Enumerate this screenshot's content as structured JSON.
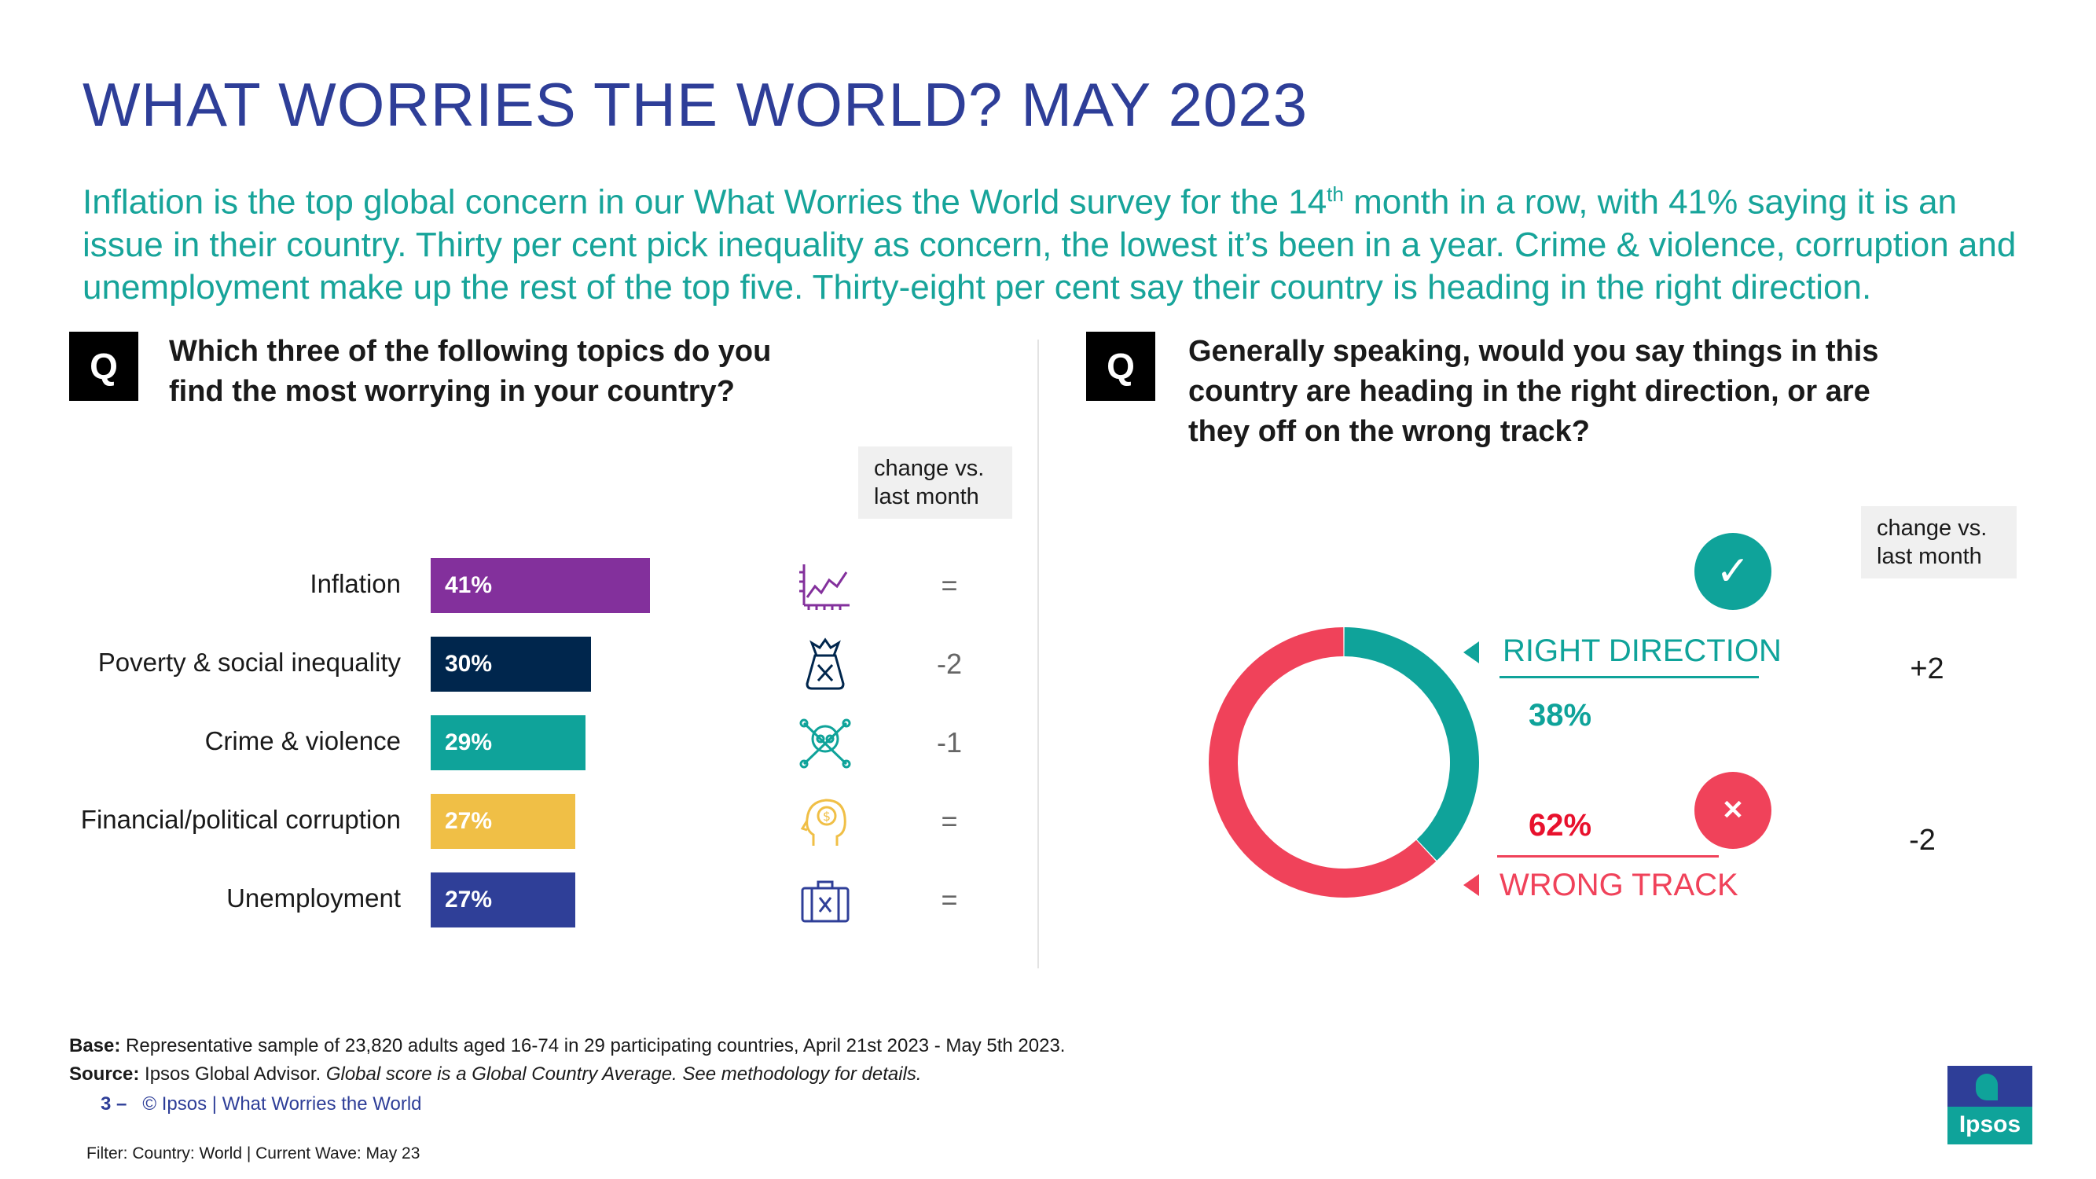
{
  "title": "WHAT WORRIES THE WORLD? MAY 2023",
  "intro": {
    "line1_pre": "Inflation is the top global concern in our What Worries the World survey for the 14",
    "line1_sup": "th",
    "line1_post": " month in a row, with 41% saying it is an",
    "line2": "issue in their country. Thirty per cent pick inequality as concern, the lowest it’s been in a year. Crime & violence, corruption and",
    "line3": "unemployment make up the rest of the top five. Thirty-eight per cent say their country is heading in the right direction."
  },
  "left_q": {
    "badge": "Q",
    "line1": "Which three of the following topics do you",
    "line2": "find the most worrying in your country?",
    "change_hdr_1": "change vs.",
    "change_hdr_2": "last month"
  },
  "right_q": {
    "badge": "Q",
    "line1": "Generally speaking, would you say things in this",
    "line2": "country are heading in the right direction, or are",
    "line3": "they off on the wrong track?",
    "change_hdr_1": "change vs.",
    "change_hdr_2": "last month"
  },
  "chart_data": [
    {
      "type": "bar",
      "orientation": "horizontal",
      "title": "Which three of the following topics do you find the most worrying in your country?",
      "categories": [
        "Inflation",
        "Poverty & social inequality",
        "Crime & violence",
        "Financial/political corruption",
        "Unemployment"
      ],
      "values": [
        41,
        30,
        29,
        27,
        27
      ],
      "value_labels": [
        "41%",
        "30%",
        "29%",
        "27%",
        "27%"
      ],
      "colors": [
        "#83309c",
        "#00264d",
        "#0fa39a",
        "#f0bf46",
        "#2f3f98"
      ],
      "icons": [
        "inflation-chart-icon",
        "money-bag-icon",
        "skull-crossbones-icon",
        "head-dollar-icon",
        "briefcase-x-icon"
      ],
      "change_vs_last_month": [
        "=",
        "-2",
        "-1",
        "=",
        "="
      ],
      "xlim": [
        0,
        100
      ]
    },
    {
      "type": "pie",
      "style": "donut",
      "title": "Generally speaking, would you say things in this country are heading in the right direction, or are they off on the wrong track?",
      "categories": [
        "RIGHT DIRECTION",
        "WRONG TRACK"
      ],
      "values": [
        38,
        62
      ],
      "value_labels": [
        "38%",
        "62%"
      ],
      "colors": [
        "#0fa39a",
        "#f0425a"
      ],
      "change_vs_last_month": [
        "+2",
        "-2"
      ],
      "status_icons": [
        "check-icon",
        "cross-icon"
      ]
    }
  ],
  "footer": {
    "base_label": "Base:",
    "base_text": " Representative sample of 23,820 adults aged 16-74 in 29 participating countries, April 21st 2023 - May 5th 2023.",
    "source_label": "Source:",
    "source_text": " Ipsos Global Advisor. ",
    "source_italic": "Global score is a Global Country Average. See methodology for details.",
    "page_num": "3",
    "page_dash": " –",
    "copyright": "© Ipsos | What Worries the World",
    "filter": "Filter: Country: World | Current Wave: May 23",
    "logo_text": "Ipsos"
  },
  "colors": {
    "title": "#2e3e98",
    "teal": "#0fa39a",
    "red": "#f0425a",
    "intro": "#17a49a"
  }
}
